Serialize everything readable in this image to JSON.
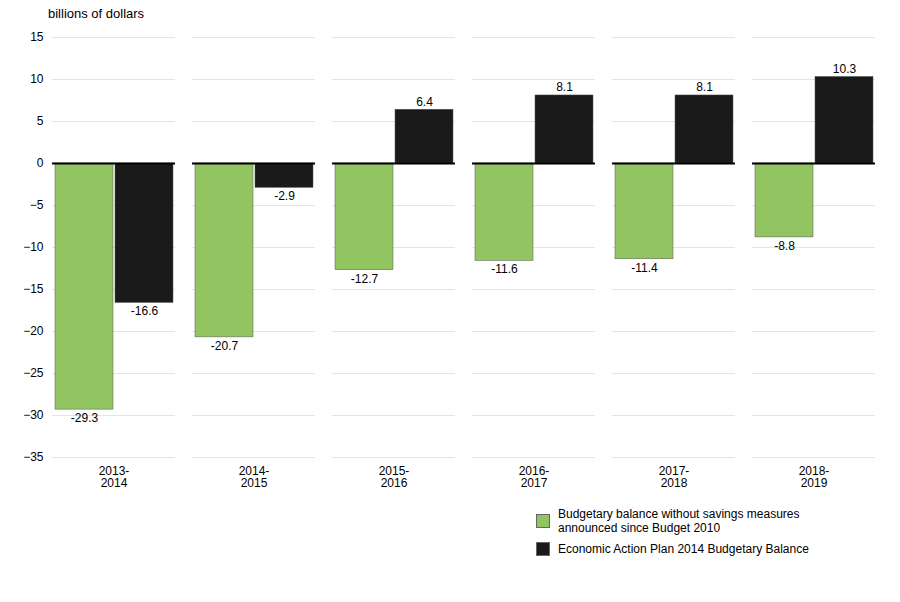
{
  "chart_data": {
    "type": "bar",
    "ylabel": "billions of dollars",
    "categories": [
      "2013-\n2014",
      "2014-\n2015",
      "2015-\n2016",
      "2016-\n2017",
      "2017-\n2018",
      "2018-\n2019"
    ],
    "series": [
      {
        "name": "Budgetary balance without savings measures\nannounced since Budget 2010",
        "color": "#92c462",
        "values": [
          -29.3,
          -20.7,
          -12.7,
          -11.6,
          -11.4,
          -8.8
        ]
      },
      {
        "name": "Economic Action Plan 2014 Budgetary  Balance",
        "color": "#1a1a1a",
        "values": [
          -16.6,
          -2.9,
          6.4,
          8.1,
          8.1,
          10.3
        ]
      }
    ],
    "ylim": [
      -35,
      15
    ],
    "yticks": [
      -35,
      -30,
      -25,
      -20,
      -15,
      -10,
      -5,
      0,
      5,
      10,
      15
    ],
    "grid": true,
    "legend": "lower right",
    "data_labels": true
  }
}
